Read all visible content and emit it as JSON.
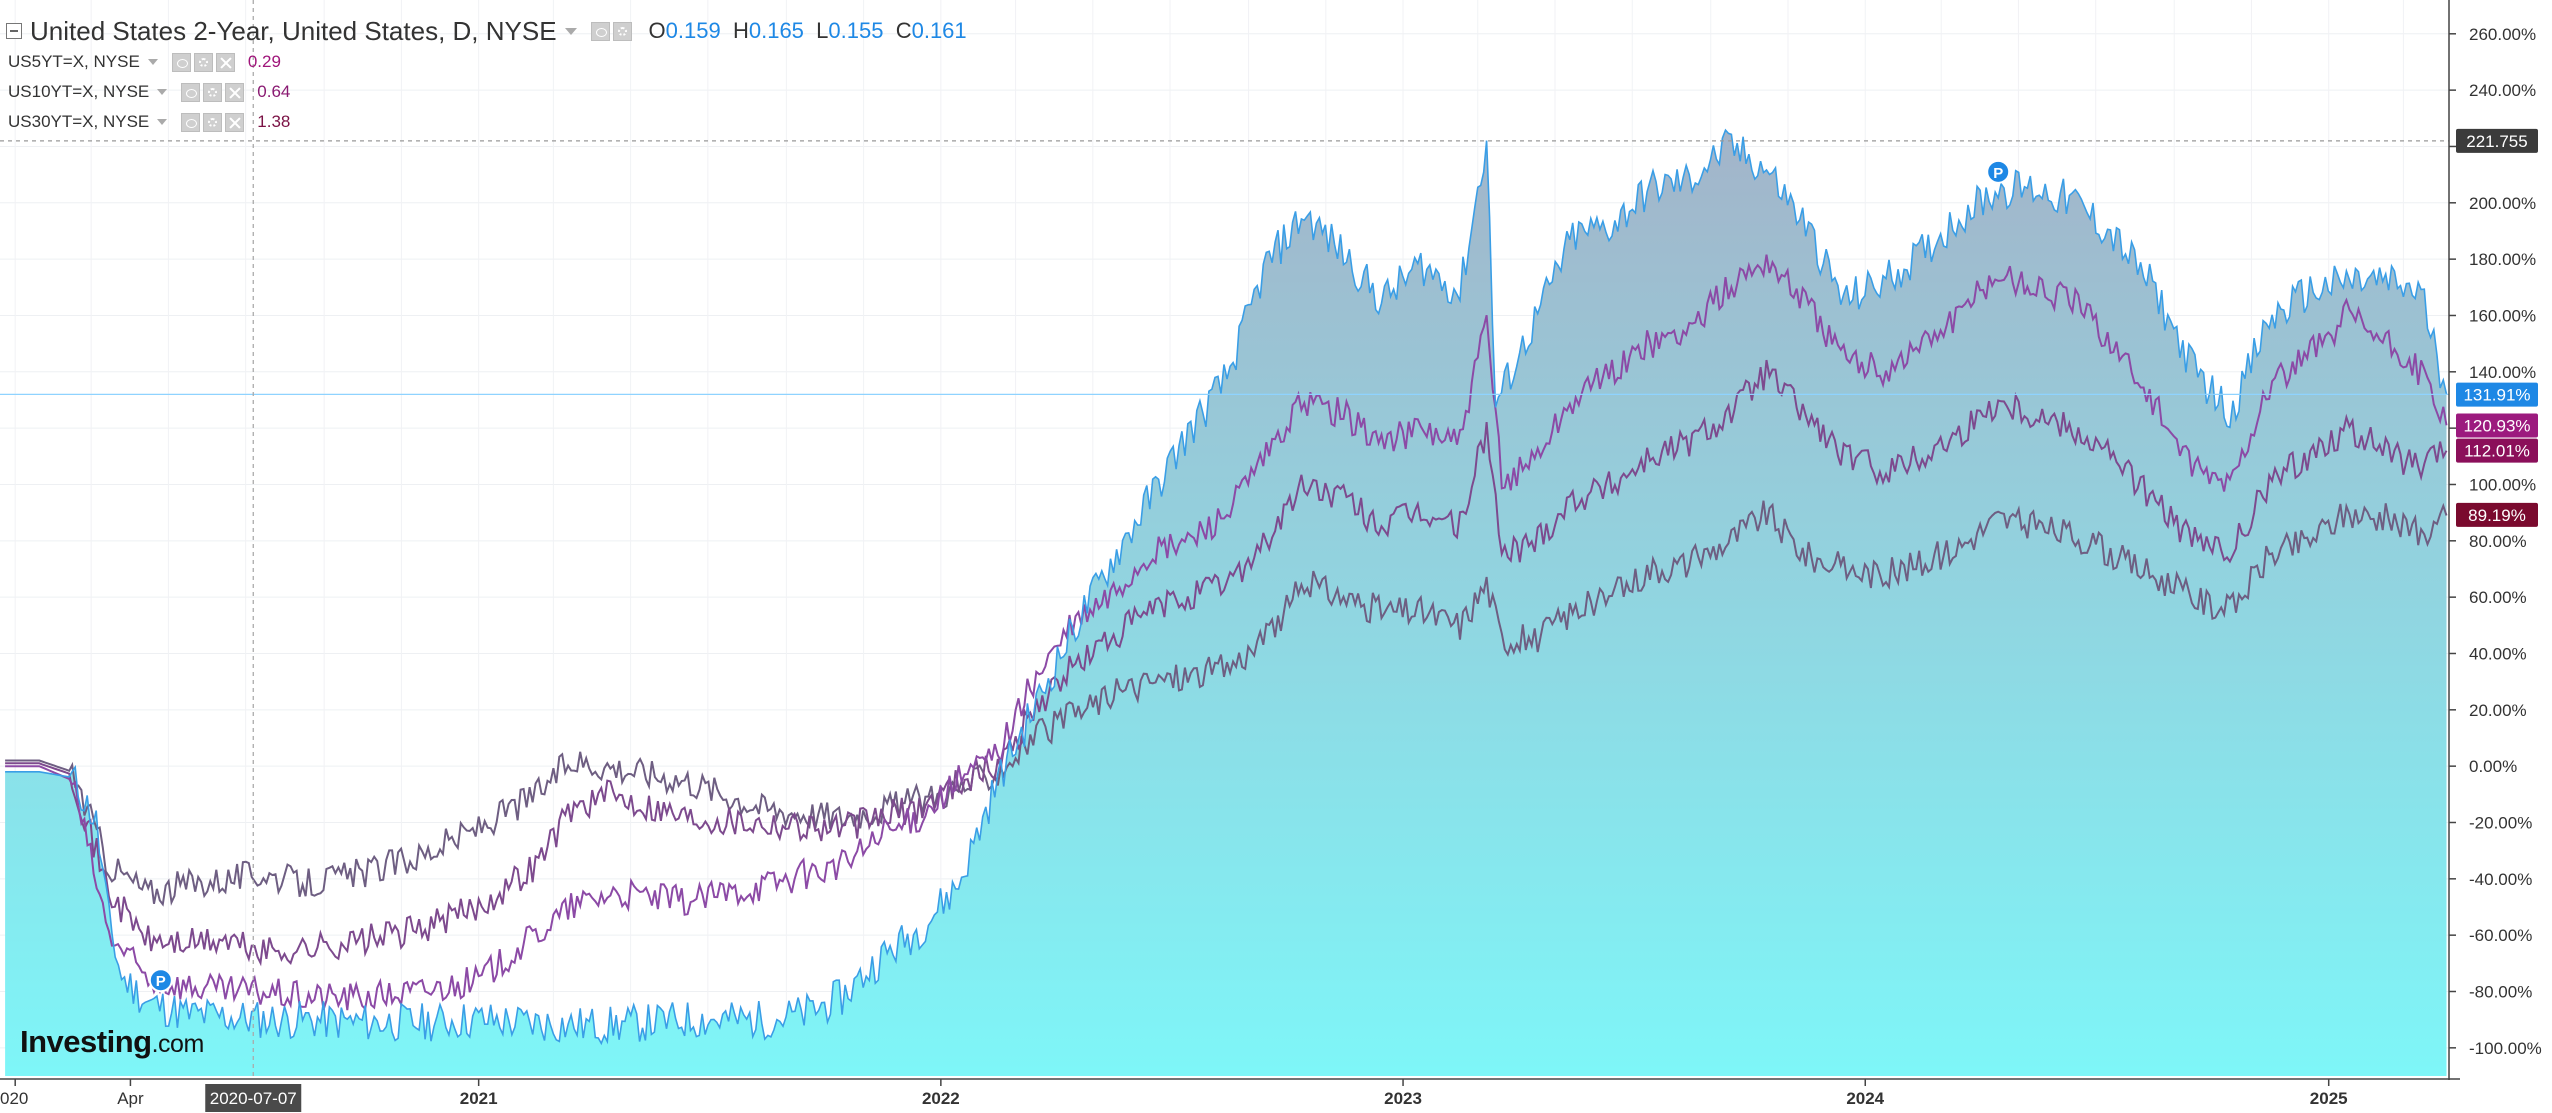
{
  "legend": {
    "main": {
      "title": "United States 2-Year, United States, D, NYSE",
      "o_label": "O",
      "o": "0.159",
      "h_label": "H",
      "h": "0.165",
      "l_label": "L",
      "l": "0.155",
      "c_label": "C",
      "c": "0.161"
    },
    "series": [
      {
        "title": "US5YT=X, NYSE",
        "value": "0.29",
        "color": "#a0147a"
      },
      {
        "title": "US10YT=X, NYSE",
        "value": "0.64",
        "color": "#8a1a72"
      },
      {
        "title": "US30YT=X, NYSE",
        "value": "1.38",
        "color": "#7b1245"
      }
    ]
  },
  "logo": {
    "brand": "Investing",
    "domain": ".com"
  },
  "colors": {
    "main_line": "#3a9ee6",
    "area_top": "#a3b4c9",
    "area_bottom": "#7ef6f8",
    "us5y": "#8c4aa6",
    "us10y": "#7d4a8e",
    "us30y": "#6e5e82",
    "crosshair": "#8fd3ff",
    "tag_main": "#1e88e5",
    "tag_us5y": "#9c1a7e",
    "tag_us10y": "#8b0f5a",
    "tag_us30y": "#7a0a2e"
  },
  "chart_data": {
    "type": "line",
    "y_unit": "%",
    "ylim": [
      -110,
      272
    ],
    "xlim": [
      "2019-12-20",
      "2025-04-06"
    ],
    "grid": true,
    "y_ticks": [
      "260.00%",
      "240.00%",
      "220.00%",
      "200.00%",
      "180.00%",
      "160.00%",
      "140.00%",
      "120.00%",
      "100.00%",
      "80.00%",
      "60.00%",
      "40.00%",
      "20.00%",
      "0.00%",
      "-20.00%",
      "-40.00%",
      "-60.00%",
      "-80.00%",
      "-100.00%"
    ],
    "x_ticks": [
      {
        "label": "020",
        "date": "2020-01-01"
      },
      {
        "label": "Apr",
        "date": "2020-04-01"
      },
      {
        "label": "2021",
        "date": "2021-01-01"
      },
      {
        "label": "2022",
        "date": "2022-01-01"
      },
      {
        "label": "2023",
        "date": "2023-01-01"
      },
      {
        "label": "2024",
        "date": "2024-01-01"
      },
      {
        "label": "2025",
        "date": "2025-01-01"
      }
    ],
    "crosshair": {
      "date_label": "2020-07-07",
      "date": "2020-07-07",
      "value": 132,
      "dotted_value": 222
    },
    "price_tags": [
      {
        "label": "221.755",
        "value": 222,
        "style": "dark"
      },
      {
        "label": "131.91%",
        "value": 131.91,
        "style": "main"
      },
      {
        "label": "120.93%",
        "value": 120.93,
        "style": "us5y"
      },
      {
        "label": "112.01%",
        "value": 112.01,
        "style": "us10y"
      },
      {
        "label": "89.19%",
        "value": 89.19,
        "style": "us30y"
      }
    ],
    "markers": [
      {
        "label": "P",
        "date": "2020-04-25",
        "value": -76
      },
      {
        "label": "P",
        "date": "2024-04-15",
        "value": 211
      }
    ],
    "series": [
      {
        "name": "United States 2-Year",
        "role": "area",
        "x": [
          "2019-12-24",
          "2020-01-20",
          "2020-02-15",
          "2020-03-05",
          "2020-03-15",
          "2020-03-25",
          "2020-04-15",
          "2020-05-15",
          "2020-06-15",
          "2020-07-15",
          "2020-08-15",
          "2020-10-01",
          "2020-11-15",
          "2021-01-01",
          "2021-02-01",
          "2021-03-15",
          "2021-04-15",
          "2021-05-15",
          "2021-06-15",
          "2021-07-15",
          "2021-08-15",
          "2021-09-15",
          "2021-10-15",
          "2021-11-15",
          "2021-12-15",
          "2022-01-15",
          "2022-02-15",
          "2022-03-15",
          "2022-04-15",
          "2022-05-15",
          "2022-06-15",
          "2022-07-15",
          "2022-08-15",
          "2022-09-15",
          "2022-10-15",
          "2022-11-15",
          "2022-12-15",
          "2023-01-15",
          "2023-02-15",
          "2023-03-08",
          "2023-03-15",
          "2023-04-15",
          "2023-05-15",
          "2023-06-15",
          "2023-07-15",
          "2023-08-15",
          "2023-09-15",
          "2023-10-15",
          "2023-11-15",
          "2023-12-15",
          "2024-01-15",
          "2024-02-15",
          "2024-03-15",
          "2024-04-15",
          "2024-05-15",
          "2024-06-15",
          "2024-07-15",
          "2024-08-15",
          "2024-09-15",
          "2024-10-15",
          "2024-11-15",
          "2024-12-15",
          "2025-01-15",
          "2025-02-15",
          "2025-03-15",
          "2025-04-04"
        ],
        "y": [
          -2,
          -2,
          -4,
          -20,
          -55,
          -75,
          -84,
          -88,
          -89,
          -90,
          -90,
          -91,
          -91,
          -90,
          -91,
          -92,
          -92,
          -91,
          -90,
          -90,
          -90,
          -88,
          -82,
          -68,
          -58,
          -42,
          -5,
          20,
          48,
          72,
          95,
          118,
          138,
          178,
          196,
          182,
          165,
          178,
          168,
          222,
          128,
          158,
          188,
          192,
          205,
          208,
          220,
          212,
          192,
          165,
          172,
          182,
          195,
          205,
          205,
          200,
          188,
          170,
          142,
          125,
          158,
          168,
          172,
          172,
          168,
          132
        ]
      },
      {
        "name": "US5YT=X, NYSE",
        "x": [
          "2019-12-24",
          "2020-01-20",
          "2020-02-15",
          "2020-03-15",
          "2020-04-15",
          "2020-05-15",
          "2020-06-15",
          "2020-07-15",
          "2020-08-15",
          "2020-10-01",
          "2020-11-15",
          "2021-01-01",
          "2021-02-15",
          "2021-03-15",
          "2021-04-15",
          "2021-06-15",
          "2021-08-15",
          "2021-10-15",
          "2021-11-15",
          "2021-12-15",
          "2022-01-15",
          "2022-02-15",
          "2022-03-15",
          "2022-04-15",
          "2022-05-15",
          "2022-06-15",
          "2022-07-15",
          "2022-08-15",
          "2022-09-15",
          "2022-10-15",
          "2022-11-15",
          "2022-12-15",
          "2023-01-15",
          "2023-02-15",
          "2023-03-08",
          "2023-03-20",
          "2023-04-15",
          "2023-05-15",
          "2023-06-15",
          "2023-07-15",
          "2023-08-15",
          "2023-09-15",
          "2023-10-15",
          "2023-11-15",
          "2023-12-15",
          "2024-01-15",
          "2024-02-15",
          "2024-03-15",
          "2024-04-15",
          "2024-05-15",
          "2024-06-15",
          "2024-07-15",
          "2024-08-15",
          "2024-09-15",
          "2024-10-15",
          "2024-11-15",
          "2024-12-15",
          "2025-01-15",
          "2025-02-15",
          "2025-03-15",
          "2025-04-04"
        ],
        "y": [
          0,
          0,
          -5,
          -60,
          -76,
          -78,
          -80,
          -80,
          -82,
          -82,
          -80,
          -76,
          -60,
          -50,
          -45,
          -48,
          -42,
          -35,
          -25,
          -18,
          -5,
          5,
          30,
          50,
          60,
          75,
          80,
          90,
          110,
          130,
          125,
          115,
          120,
          115,
          158,
          100,
          110,
          130,
          140,
          150,
          155,
          170,
          180,
          165,
          145,
          140,
          150,
          160,
          175,
          170,
          165,
          150,
          130,
          105,
          100,
          135,
          145,
          160,
          150,
          140,
          121
        ]
      },
      {
        "name": "US10YT=X, NYSE",
        "x": [
          "2019-12-24",
          "2020-01-20",
          "2020-02-15",
          "2020-03-15",
          "2020-04-15",
          "2020-05-15",
          "2020-06-15",
          "2020-07-15",
          "2020-08-15",
          "2020-10-01",
          "2020-11-15",
          "2021-01-01",
          "2021-02-15",
          "2021-03-15",
          "2021-04-15",
          "2021-06-15",
          "2021-08-15",
          "2021-10-15",
          "2021-11-15",
          "2021-12-15",
          "2022-01-15",
          "2022-02-15",
          "2022-03-15",
          "2022-04-15",
          "2022-05-15",
          "2022-06-15",
          "2022-07-15",
          "2022-08-15",
          "2022-09-15",
          "2022-10-15",
          "2022-11-15",
          "2022-12-15",
          "2023-01-15",
          "2023-02-15",
          "2023-03-08",
          "2023-03-20",
          "2023-04-15",
          "2023-05-15",
          "2023-06-15",
          "2023-07-15",
          "2023-08-15",
          "2023-09-15",
          "2023-10-15",
          "2023-11-15",
          "2023-12-15",
          "2024-01-15",
          "2024-02-15",
          "2024-03-15",
          "2024-04-15",
          "2024-05-15",
          "2024-06-15",
          "2024-07-15",
          "2024-08-15",
          "2024-09-15",
          "2024-10-15",
          "2024-11-15",
          "2024-12-15",
          "2025-01-15",
          "2025-02-15",
          "2025-03-15",
          "2025-04-04"
        ],
        "y": [
          1,
          1,
          -3,
          -45,
          -62,
          -63,
          -62,
          -66,
          -65,
          -62,
          -58,
          -50,
          -35,
          -15,
          -10,
          -18,
          -20,
          -22,
          -18,
          -15,
          -5,
          0,
          20,
          35,
          45,
          55,
          60,
          65,
          80,
          100,
          95,
          85,
          90,
          85,
          120,
          75,
          80,
          95,
          100,
          110,
          115,
          125,
          140,
          125,
          110,
          105,
          110,
          118,
          130,
          125,
          120,
          110,
          95,
          80,
          75,
          100,
          110,
          120,
          112,
          105,
          112
        ]
      },
      {
        "name": "US30YT=X, NYSE",
        "x": [
          "2019-12-24",
          "2020-01-20",
          "2020-02-15",
          "2020-03-15",
          "2020-04-15",
          "2020-05-15",
          "2020-06-15",
          "2020-07-15",
          "2020-08-15",
          "2020-10-01",
          "2020-11-15",
          "2021-01-01",
          "2021-02-15",
          "2021-03-15",
          "2021-04-15",
          "2021-06-15",
          "2021-08-15",
          "2021-10-15",
          "2021-11-15",
          "2021-12-15",
          "2022-01-15",
          "2022-02-15",
          "2022-03-15",
          "2022-04-15",
          "2022-05-15",
          "2022-06-15",
          "2022-07-15",
          "2022-08-15",
          "2022-09-15",
          "2022-10-15",
          "2022-11-15",
          "2022-12-15",
          "2023-01-15",
          "2023-02-15",
          "2023-03-08",
          "2023-03-20",
          "2023-04-15",
          "2023-05-15",
          "2023-06-15",
          "2023-07-15",
          "2023-08-15",
          "2023-09-15",
          "2023-10-15",
          "2023-11-15",
          "2023-12-15",
          "2024-01-15",
          "2024-02-15",
          "2024-03-15",
          "2024-04-15",
          "2024-05-15",
          "2024-06-15",
          "2024-07-15",
          "2024-08-15",
          "2024-09-15",
          "2024-10-15",
          "2024-11-15",
          "2024-12-15",
          "2025-01-15",
          "2025-02-15",
          "2025-03-15",
          "2025-04-04"
        ],
        "y": [
          2,
          2,
          -2,
          -35,
          -45,
          -42,
          -40,
          -38,
          -42,
          -38,
          -32,
          -22,
          -10,
          2,
          0,
          -5,
          -15,
          -18,
          -15,
          -12,
          -8,
          -2,
          10,
          18,
          25,
          30,
          32,
          35,
          45,
          65,
          60,
          55,
          55,
          50,
          65,
          45,
          45,
          55,
          60,
          70,
          72,
          80,
          90,
          75,
          70,
          68,
          72,
          78,
          88,
          85,
          82,
          75,
          68,
          60,
          55,
          75,
          80,
          90,
          88,
          82,
          89
        ]
      }
    ]
  }
}
